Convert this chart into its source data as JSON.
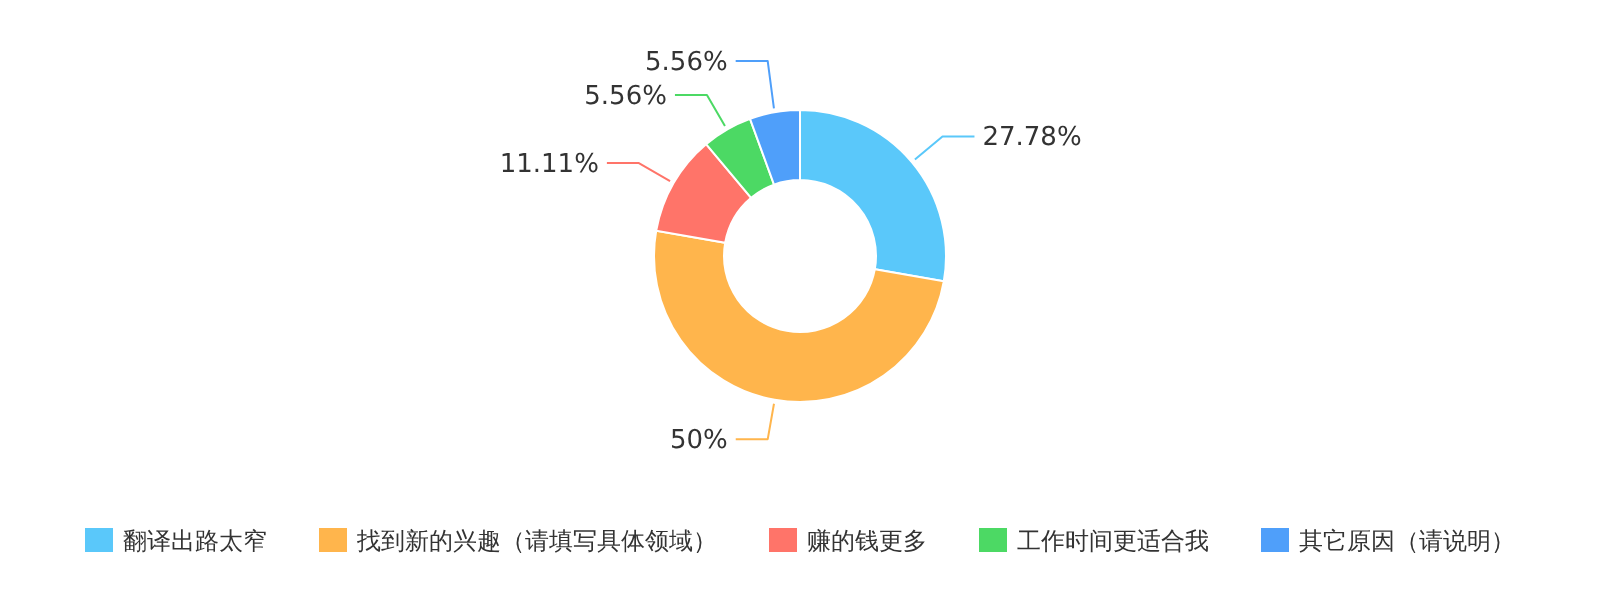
{
  "chart_data": {
    "type": "donut",
    "categories": [
      "翻译出路太窄",
      "找到新的兴趣（请填写具体领域）",
      "赚的钱更多",
      "工作时间更适合我",
      "其它原因（请说明）"
    ],
    "values": [
      27.78,
      50,
      11.11,
      5.56,
      5.56
    ],
    "value_labels": [
      "27.78%",
      "50%",
      "11.11%",
      "5.56%",
      "5.56%"
    ],
    "colors": [
      "#5ac8fa",
      "#ffb54c",
      "#ff7469",
      "#4cd964",
      "#4f9ffa"
    ],
    "legend": "bottom"
  }
}
